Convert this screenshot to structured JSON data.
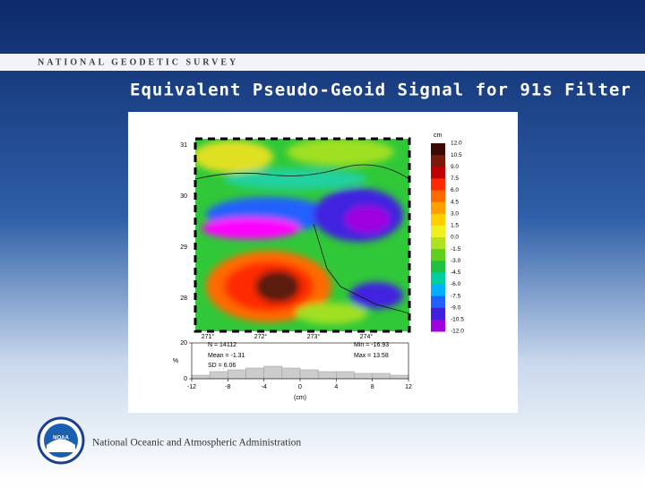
{
  "header": {
    "agency": "NATIONAL GEODETIC SURVEY",
    "title": "Equivalent Pseudo-Geoid Signal for 91s Filter"
  },
  "figure": {
    "lat_labels": [
      "31",
      "30",
      "29",
      "28"
    ],
    "lon_labels": [
      "271°",
      "272°",
      "273°",
      "274°"
    ],
    "colorbar": {
      "unit": "cm",
      "labels": [
        "12.0",
        "10.5",
        "9.0",
        "7.5",
        "6.0",
        "4.5",
        "3.0",
        "1.5",
        "0.0",
        "-1.5",
        "-3.0",
        "-4.5",
        "-6.0",
        "-7.5",
        "-9.0",
        "-10.5",
        "-12.0"
      ]
    },
    "stats": [
      "N = 14112",
      "Mean = -1.31",
      "SD = 6.06",
      "Min = -16.93",
      "Max = 13.58"
    ],
    "histogram": {
      "bins": [
        -12,
        -10,
        -8,
        -6,
        -4,
        -2,
        0,
        2,
        4,
        6,
        8,
        10,
        12
      ],
      "counts": [
        2,
        4,
        5,
        6,
        7,
        6,
        5,
        4,
        4,
        3,
        3,
        2
      ],
      "xlim": [
        -12,
        12
      ],
      "ylim": [
        0,
        20
      ],
      "xticks": [
        -12,
        -8,
        -4,
        0,
        4,
        8,
        12
      ],
      "yticks": [
        0,
        20
      ],
      "ylabel": "%",
      "xlabel": "(cm)"
    }
  },
  "footer": {
    "logo": "NOAA",
    "organization": "National Oceanic and Atmospheric Administration"
  }
}
